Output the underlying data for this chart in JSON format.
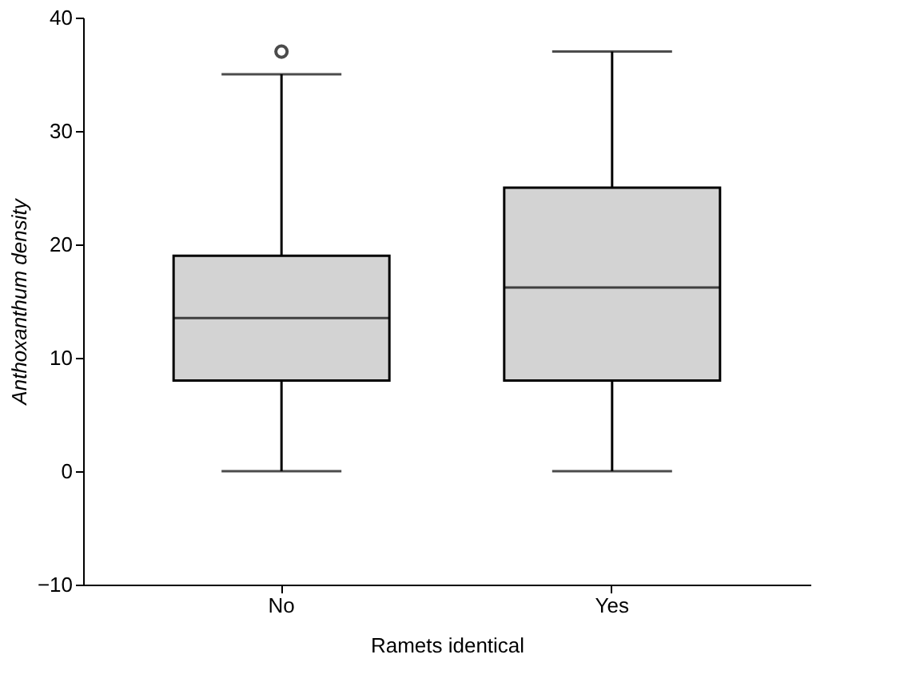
{
  "chart_data": {
    "type": "box",
    "xlabel": "Ramets identical",
    "ylabel": "Anthoxanthum density",
    "categories": [
      "No",
      "Yes"
    ],
    "boxes": [
      {
        "low": 0,
        "q1": 8,
        "median": 13.5,
        "q3": 19,
        "high": 35,
        "outliers": [
          37
        ]
      },
      {
        "low": 0,
        "q1": 8,
        "median": 16.2,
        "q3": 25,
        "high": 37
      }
    ],
    "color": "#d3d3d3",
    "ylim": [
      -10,
      40
    ],
    "yticks": [
      -10,
      0,
      10,
      20,
      30,
      40
    ],
    "grid": false
  }
}
